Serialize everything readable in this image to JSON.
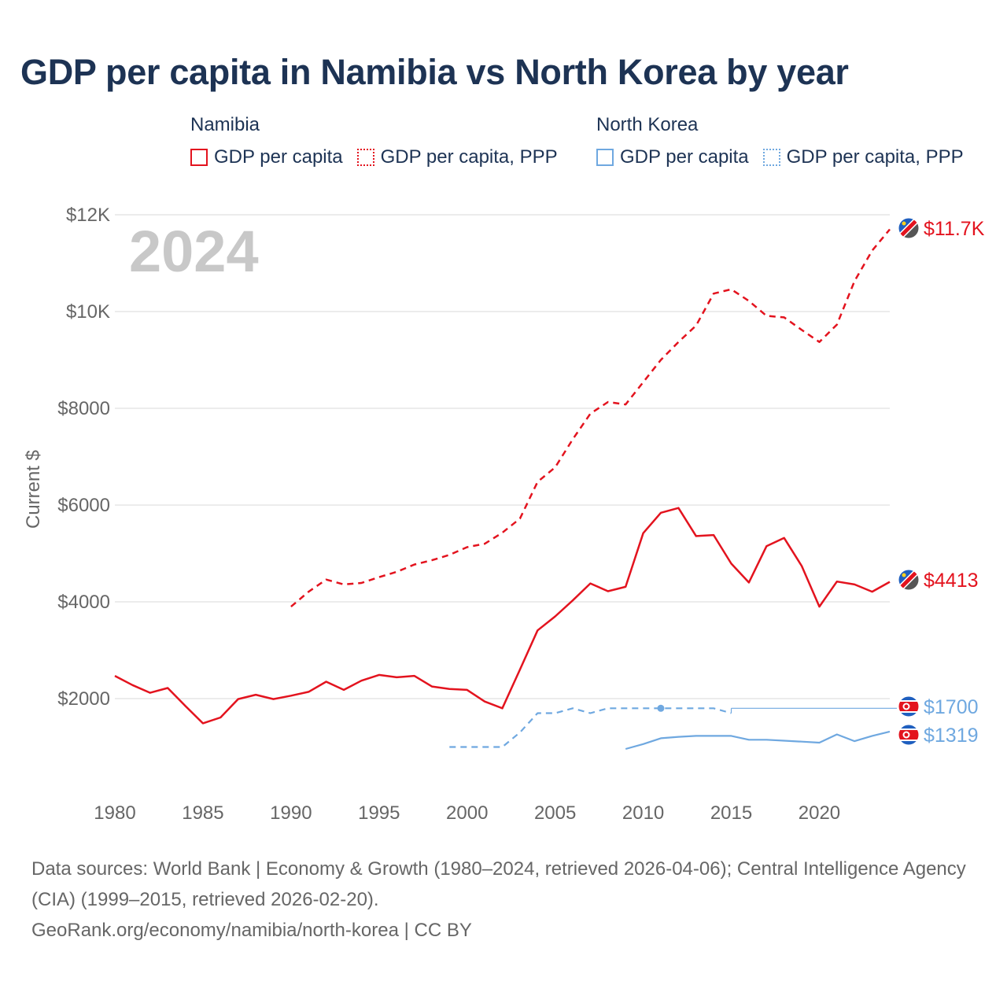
{
  "title": "GDP per capita in Namibia vs North Korea by year",
  "legend": {
    "namibia": {
      "name": "Namibia",
      "items": [
        "GDP per capita",
        "GDP per capita, PPP"
      ]
    },
    "north_korea": {
      "name": "North Korea",
      "items": [
        "GDP per capita",
        "GDP per capita, PPP"
      ]
    }
  },
  "colors": {
    "namibia": "#e3131e",
    "north_korea": "#6fa8e0",
    "title": "#1d3354",
    "axis_text": "#666666",
    "year_watermark": "#c8c8c8"
  },
  "footer": {
    "sources": "Data sources: World Bank | Economy & Growth (1980–2024, retrieved 2026-04-06); Central Intelligence Agency (CIA) (1999–2015, retrieved 2026-02-20).",
    "credit": "GeoRank.org/economy/namibia/north-korea | CC BY"
  },
  "chart_data": {
    "type": "line",
    "year_watermark": "2024",
    "ylabel": "Current $",
    "xlim": [
      1980,
      2024
    ],
    "ylim": [
      0,
      12000
    ],
    "x_ticks": [
      1980,
      1985,
      1990,
      1995,
      2000,
      2005,
      2010,
      2015,
      2020
    ],
    "x_tick_labels": [
      "1980",
      "1985",
      "1990",
      "1995",
      "2000",
      "2005",
      "2010",
      "2015",
      "2020"
    ],
    "y_ticks": [
      2000,
      4000,
      6000,
      8000,
      10000,
      12000
    ],
    "y_tick_labels": [
      "$2000",
      "$4000",
      "$6000",
      "$8000",
      "$10K",
      "$12K"
    ],
    "series": [
      {
        "name": "Namibia GDP per capita",
        "country": "namibia",
        "style": "solid",
        "end_label": "$4413",
        "x": [
          1980,
          1981,
          1982,
          1983,
          1984,
          1985,
          1986,
          1987,
          1988,
          1989,
          1990,
          1991,
          1992,
          1993,
          1994,
          1995,
          1996,
          1997,
          1998,
          1999,
          2000,
          2001,
          2002,
          2003,
          2004,
          2005,
          2006,
          2007,
          2008,
          2009,
          2010,
          2011,
          2012,
          2013,
          2014,
          2015,
          2016,
          2017,
          2018,
          2019,
          2020,
          2021,
          2022,
          2023,
          2024
        ],
        "values": [
          2470,
          2280,
          2120,
          2220,
          1850,
          1490,
          1610,
          1990,
          2080,
          1990,
          2060,
          2140,
          2350,
          2180,
          2370,
          2490,
          2440,
          2470,
          2250,
          2200,
          2180,
          1940,
          1800,
          2600,
          3410,
          3700,
          4030,
          4380,
          4220,
          4310,
          5420,
          5840,
          5940,
          5360,
          5380,
          4790,
          4400,
          5150,
          5320,
          4740,
          3900,
          4420,
          4360,
          4210,
          4413
        ]
      },
      {
        "name": "Namibia GDP per capita, PPP",
        "country": "namibia",
        "style": "dashed",
        "end_label": "$11.7K",
        "x": [
          1990,
          1991,
          1992,
          1993,
          1994,
          1995,
          1996,
          1997,
          1998,
          1999,
          2000,
          2001,
          2002,
          2003,
          2004,
          2005,
          2006,
          2007,
          2008,
          2009,
          2010,
          2011,
          2012,
          2013,
          2014,
          2015,
          2016,
          2017,
          2018,
          2019,
          2020,
          2021,
          2022,
          2023,
          2024
        ],
        "values": [
          3900,
          4210,
          4460,
          4360,
          4390,
          4510,
          4620,
          4770,
          4860,
          4970,
          5130,
          5200,
          5430,
          5720,
          6480,
          6780,
          7360,
          7890,
          8130,
          8080,
          8540,
          9000,
          9370,
          9710,
          10370,
          10460,
          10220,
          9910,
          9880,
          9620,
          9370,
          9730,
          10630,
          11260,
          11700
        ]
      },
      {
        "name": "North Korea GDP per capita",
        "country": "north_korea",
        "style": "solid",
        "end_label": "$1319",
        "x": [
          2009,
          2010,
          2011,
          2012,
          2013,
          2014,
          2015,
          2016,
          2017,
          2018,
          2019,
          2020,
          2021,
          2022,
          2023,
          2024
        ],
        "values": [
          960,
          1060,
          1180,
          1210,
          1230,
          1230,
          1230,
          1150,
          1150,
          1130,
          1110,
          1090,
          1260,
          1120,
          1230,
          1319
        ]
      },
      {
        "name": "North Korea GDP per capita, PPP",
        "country": "north_korea",
        "style": "dashed",
        "end_label": "$1700",
        "x": [
          1999,
          2000,
          2001,
          2002,
          2003,
          2004,
          2005,
          2006,
          2007,
          2008,
          2009,
          2010,
          2011,
          2012,
          2013,
          2014,
          2015
        ],
        "values": [
          1000,
          1000,
          1000,
          1000,
          1300,
          1700,
          1700,
          1800,
          1700,
          1800,
          1800,
          1800,
          1800,
          1800,
          1800,
          1800,
          1700
        ]
      }
    ]
  }
}
